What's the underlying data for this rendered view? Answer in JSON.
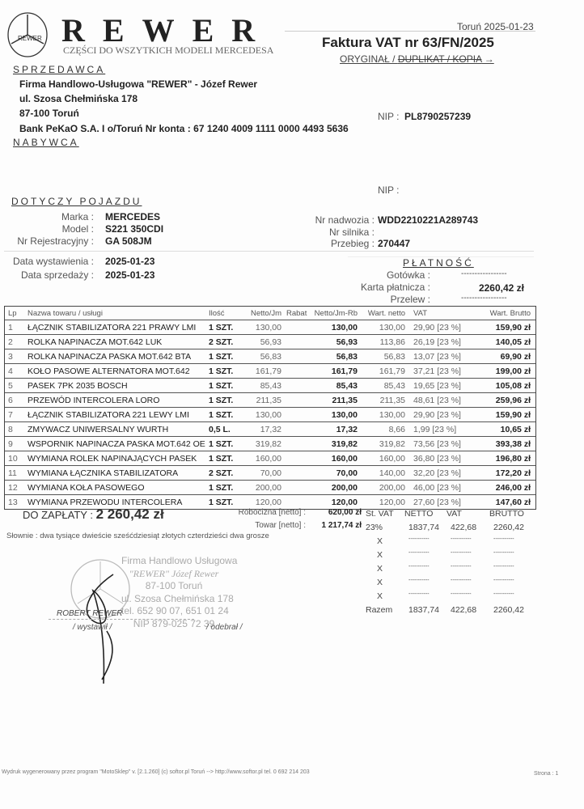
{
  "header": {
    "brand": "REWER",
    "tagline": "CZĘŚCI DO WSZYTKICH MODELI MERCEDESA",
    "logo_text": "REWER",
    "place_date": "Toruń 2025-01-23",
    "title": "Faktura VAT nr 63/FN/2025",
    "copy_status": "ORYGINAŁ / ",
    "copy_struck": "DUPLIKAT / KOPIA"
  },
  "seller": {
    "heading": "SPRZEDAWCA",
    "name": "Firma Handlowo-Usługowa \"REWER\" - Józef Rewer",
    "street": "ul. Szosa Chełmińska 178",
    "city": "87-100 Toruń",
    "bank": "Bank PeKaO S.A. I o/Toruń  Nr konta : 67 1240 4009 1111 0000 4493 5636",
    "nip_label": "NIP :",
    "nip": "PL8790257239"
  },
  "buyer": {
    "heading": "NABYWCA",
    "nip_label": "NIP :"
  },
  "vehicle": {
    "heading": "DOTYCZY POJAZDU",
    "marka_label": "Marka :",
    "marka": "MERCEDES",
    "model_label": "Model :",
    "model": "S221 350CDI",
    "reg_label": "Nr Rejestracyjny :",
    "reg": "GA 508JM",
    "vin_label": "Nr nadwozia :",
    "vin": "WDD2210221A289743",
    "engine_label": "Nr silnika :",
    "mileage_label": "Przebieg :",
    "mileage": "270447"
  },
  "dates": {
    "issue_label": "Data wystawienia :",
    "issue": "2025-01-23",
    "sale_label": "Data sprzedaży :",
    "sale": "2025-01-23"
  },
  "payment": {
    "heading": "PŁATNOŚĆ",
    "cash_label": "Gotówka :",
    "cash": "-----------------",
    "card_label": "Karta płatnicza :",
    "card": "2260,42 zł",
    "transfer_label": "Przelew :",
    "transfer": "-----------------"
  },
  "table": {
    "headers": [
      "Lp",
      "Nazwa towaru / usługi",
      "Ilość",
      "Netto/Jm",
      "Rabat",
      "Netto/Jm-Rb",
      "Wart. netto",
      "VAT",
      "Wart. Brutto"
    ],
    "rows": [
      [
        "1",
        "ŁĄCZNIK STABILIZATORA 221 PRAWY LMI",
        "1 SZT.",
        "130,00",
        "",
        "130,00",
        "130,00",
        "29,90 [23 %]",
        "159,90 zł"
      ],
      [
        "2",
        "ROLKA NAPINACZA MOT.642 LUK",
        "2 SZT.",
        "56,93",
        "",
        "56,93",
        "113,86",
        "26,19 [23 %]",
        "140,05 zł"
      ],
      [
        "3",
        "ROLKA NAPINACZA PASKA MOT.642 BTA",
        "1 SZT.",
        "56,83",
        "",
        "56,83",
        "56,83",
        "13,07 [23 %]",
        "69,90 zł"
      ],
      [
        "4",
        "KOŁO PASOWE ALTERNATORA MOT.642",
        "1 SZT.",
        "161,79",
        "",
        "161,79",
        "161,79",
        "37,21 [23 %]",
        "199,00 zł"
      ],
      [
        "5",
        "PASEK 7PK 2035 BOSCH",
        "1 SZT.",
        "85,43",
        "",
        "85,43",
        "85,43",
        "19,65 [23 %]",
        "105,08 zł"
      ],
      [
        "6",
        "PRZEWÓD INTERCOLERA LORO",
        "1 SZT.",
        "211,35",
        "",
        "211,35",
        "211,35",
        "48,61 [23 %]",
        "259,96 zł"
      ],
      [
        "7",
        "ŁĄCZNIK STABILIZATORA 221 LEWY LMI",
        "1 SZT.",
        "130,00",
        "",
        "130,00",
        "130,00",
        "29,90 [23 %]",
        "159,90 zł"
      ],
      [
        "8",
        "ZMYWACZ UNIWERSALNY WURTH",
        "0,5 L.",
        "17,32",
        "",
        "17,32",
        "8,66",
        "1,99 [23 %]",
        "10,65 zł"
      ],
      [
        "9",
        "WSPORNIK NAPINACZA PASKA MOT.642 OE",
        "1 SZT.",
        "319,82",
        "",
        "319,82",
        "319,82",
        "73,56 [23 %]",
        "393,38 zł"
      ],
      [
        "10",
        "WYMIANA ROLEK NAPINAJĄCYCH PASEK",
        "1 SZT.",
        "160,00",
        "",
        "160,00",
        "160,00",
        "36,80 [23 %]",
        "196,80 zł"
      ],
      [
        "11",
        "WYMIANA ŁĄCZNIKA STABILIZATORA",
        "2 SZT.",
        "70,00",
        "",
        "70,00",
        "140,00",
        "32,20 [23 %]",
        "172,20 zł"
      ],
      [
        "12",
        "WYMIANA KOŁA PASOWEGO",
        "1 SZT.",
        "200,00",
        "",
        "200,00",
        "200,00",
        "46,00 [23 %]",
        "246,00 zł"
      ],
      [
        "13",
        "WYMIANA PRZEWODU INTERCOLERA",
        "1 SZT.",
        "120,00",
        "",
        "120,00",
        "120,00",
        "27,60 [23 %]",
        "147,60 zł"
      ]
    ]
  },
  "totals": {
    "due_label": "DO ZAPŁATY :",
    "due": "2 260,42 zł",
    "labor_label": "Robocizna [netto] :",
    "labor": "620,00 zł",
    "goods_label": "Towar [netto] :",
    "goods": "1 217,74 zł",
    "words_label": "Słownie :",
    "words": "dwa tysiące dwieście sześćdziesiąt złotych czterdzieści dwa grosze"
  },
  "vat_summary": {
    "headers": [
      "St. VAT",
      "NETTO",
      "VAT",
      "BRUTTO"
    ],
    "rows": [
      [
        "23%",
        "1837,74",
        "422,68",
        "2260,42"
      ],
      [
        "X",
        "-----------",
        "-----------",
        "-----------"
      ],
      [
        "X",
        "-----------",
        "-----------",
        "-----------"
      ],
      [
        "X",
        "-----------",
        "-----------",
        "-----------"
      ],
      [
        "X",
        "-----------",
        "-----------",
        "-----------"
      ],
      [
        "X",
        "-----------",
        "-----------",
        "-----------"
      ],
      [
        "Razem",
        "1837,74",
        "422,68",
        "2260,42"
      ]
    ]
  },
  "stamp": {
    "line1": "Firma Handlowo Usługowa",
    "line2": "\"REWER\" Józef Rewer",
    "line3": "87-100 Toruń",
    "line4": "ul. Szosa Chełmińska 178",
    "line5": "tel. 652 90 07, 651 01 24",
    "line6": "NIP 879-025 72 39"
  },
  "signatures": {
    "issuer_name": "ROBERT REWER",
    "issuer_label": "/ wystawił /",
    "receiver_label": "/ odebrał /"
  },
  "footer": {
    "program": "Wydruk wygenerowany przez program \"MotoSklep\" v. [2.1.260] (c) softor.pl Toruń --> http://www.softor.pl tel. 0 692 214 203",
    "page": "Strona : 1"
  }
}
